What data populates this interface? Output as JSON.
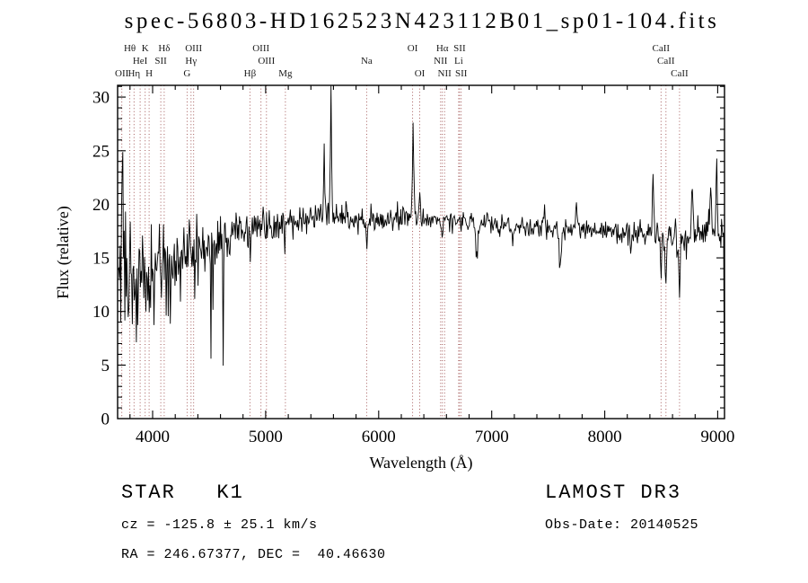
{
  "title": "spec-56803-HD162523N423112B01_sp01-104.fits",
  "footer": {
    "class_label": "STAR   K1",
    "survey": "LAMOST DR3",
    "cz": "cz = -125.8 ± 25.1 km/s",
    "obs_date": "Obs-Date: 20140525",
    "ra_dec": "RA = 246.67377, DEC =  40.46630"
  },
  "chart_data": {
    "type": "line",
    "title": "spec-56803-HD162523N423112B01_sp01-104.fits",
    "xlabel": "Wavelength (Å)",
    "ylabel": "Flux (relative)",
    "xlim": [
      3690,
      9060
    ],
    "ylim": [
      0,
      31.1
    ],
    "x_ticks": [
      4000,
      5000,
      6000,
      7000,
      8000,
      9000
    ],
    "y_ticks": [
      0,
      5,
      10,
      15,
      20,
      25,
      30
    ],
    "x_minor_step": 200,
    "y_minor_step": 1,
    "grid": false,
    "spectrum_color": "#000000",
    "marker_color": "#9b4a4a",
    "label_color": "#1a1a1a",
    "sample_step": 6,
    "noise_seed": 20140525,
    "continuum_anchors": [
      [
        3690,
        12.8
      ],
      [
        3900,
        13.2
      ],
      [
        4100,
        13.8
      ],
      [
        4300,
        14.9
      ],
      [
        4500,
        16.2
      ],
      [
        4700,
        17.2
      ],
      [
        4900,
        17.8
      ],
      [
        5200,
        18.4
      ],
      [
        5600,
        18.9
      ],
      [
        6000,
        18.4
      ],
      [
        6400,
        18.7
      ],
      [
        6800,
        18.4
      ],
      [
        7200,
        18.0
      ],
      [
        7600,
        17.7
      ],
      [
        8000,
        17.5
      ],
      [
        8400,
        17.1
      ],
      [
        8700,
        16.9
      ],
      [
        9060,
        17.6
      ]
    ],
    "noise_anchors": [
      [
        3690,
        3.6
      ],
      [
        3900,
        3.3
      ],
      [
        4100,
        2.9
      ],
      [
        4300,
        2.1
      ],
      [
        4600,
        1.4
      ],
      [
        5000,
        1.0
      ],
      [
        5500,
        0.85
      ],
      [
        6000,
        0.7
      ],
      [
        6600,
        0.65
      ],
      [
        7200,
        0.6
      ],
      [
        7800,
        0.7
      ],
      [
        8300,
        0.85
      ],
      [
        8700,
        1.1
      ],
      [
        9060,
        1.7
      ]
    ],
    "features": [
      {
        "x": 3735,
        "amp": 12.5,
        "w": 4
      },
      {
        "x": 5515,
        "amp": 7,
        "w": 4
      },
      {
        "x": 5577,
        "amp": 11.8,
        "w": 4
      },
      {
        "x": 6302,
        "amp": 9.3,
        "w": 4
      },
      {
        "x": 6365,
        "amp": 2.5,
        "w": 4
      },
      {
        "x": 7470,
        "amp": 2.2,
        "w": 4
      },
      {
        "x": 7750,
        "amp": 3,
        "w": 4
      },
      {
        "x": 8430,
        "amp": 6.5,
        "w": 4
      },
      {
        "x": 8775,
        "amp": 3.5,
        "w": 4
      },
      {
        "x": 8940,
        "amp": 5,
        "w": 4
      },
      {
        "x": 8990,
        "amp": 7.5,
        "w": 4
      },
      {
        "x": 4861,
        "amp": -1.5,
        "w": 5
      },
      {
        "x": 5172,
        "amp": -1.8,
        "w": 6
      },
      {
        "x": 5893,
        "amp": -2.2,
        "w": 5
      },
      {
        "x": 6563,
        "amp": -2,
        "w": 5
      },
      {
        "x": 6867,
        "amp": -3,
        "w": 9
      },
      {
        "x": 7186,
        "amp": -1.5,
        "w": 9
      },
      {
        "x": 7605,
        "amp": -3.2,
        "w": 9
      },
      {
        "x": 8230,
        "amp": -2,
        "w": 5
      },
      {
        "x": 8498,
        "amp": -4,
        "w": 5
      },
      {
        "x": 8542,
        "amp": -5,
        "w": 5
      },
      {
        "x": 8662,
        "amp": -4.5,
        "w": 5
      }
    ],
    "spectral_lines": [
      {
        "label": "Hθ",
        "wavelength": 3798,
        "row": 0
      },
      {
        "label": "K",
        "wavelength": 3934,
        "row": 0
      },
      {
        "label": "Hδ",
        "wavelength": 4102,
        "row": 0
      },
      {
        "label": "OIII",
        "wavelength": 4363,
        "row": 0
      },
      {
        "label": "OIII",
        "wavelength": 4959,
        "row": 0
      },
      {
        "label": "OI",
        "wavelength": 6300,
        "row": 0
      },
      {
        "label": "Hα",
        "wavelength": 6563,
        "row": 0
      },
      {
        "label": "SII",
        "wavelength": 6716,
        "row": 0
      },
      {
        "label": "CaII",
        "wavelength": 8498,
        "row": 0
      },
      {
        "label": "HeI",
        "wavelength": 3889,
        "row": 1
      },
      {
        "label": "SII",
        "wavelength": 4072,
        "row": 1
      },
      {
        "label": "Hγ",
        "wavelength": 4340,
        "row": 1
      },
      {
        "label": "OIII",
        "wavelength": 5007,
        "row": 1
      },
      {
        "label": "Na",
        "wavelength": 5894,
        "row": 1
      },
      {
        "label": "NII",
        "wavelength": 6548,
        "row": 1
      },
      {
        "label": "Li",
        "wavelength": 6708,
        "row": 1
      },
      {
        "label": "CaII",
        "wavelength": 8542,
        "row": 1
      },
      {
        "label": "OII",
        "wavelength": 3727,
        "row": 2
      },
      {
        "label": "Hη",
        "wavelength": 3835,
        "row": 2
      },
      {
        "label": "H",
        "wavelength": 3969,
        "row": 2
      },
      {
        "label": "G",
        "wavelength": 4305,
        "row": 2
      },
      {
        "label": "Hβ",
        "wavelength": 4861,
        "row": 2
      },
      {
        "label": "Mg",
        "wavelength": 5175,
        "row": 2
      },
      {
        "label": "OI",
        "wavelength": 6363,
        "row": 2
      },
      {
        "label": "NII",
        "wavelength": 6583,
        "row": 2
      },
      {
        "label": "SII",
        "wavelength": 6730,
        "row": 2
      },
      {
        "label": "CaII",
        "wavelength": 8662,
        "row": 2
      }
    ]
  }
}
